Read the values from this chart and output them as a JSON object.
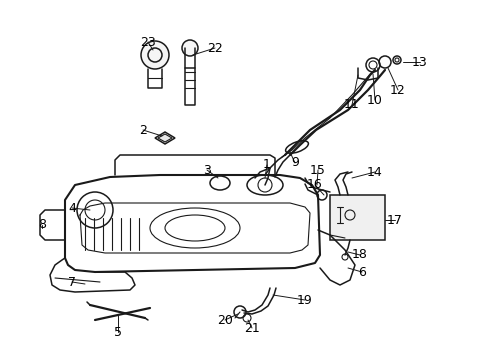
{
  "bg_color": "#ffffff",
  "line_color": "#1a1a1a",
  "label_color": "#000000",
  "label_fontsize": 9,
  "fig_width": 4.89,
  "fig_height": 3.6,
  "dpi": 100
}
